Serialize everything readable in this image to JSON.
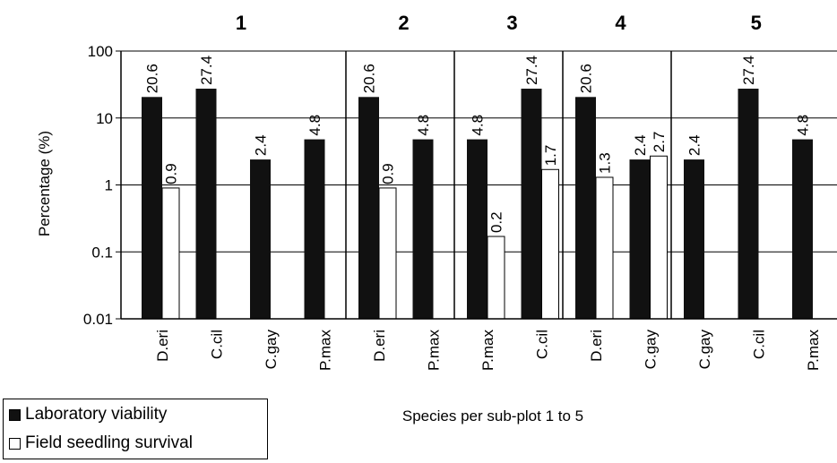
{
  "chart_data": {
    "type": "bar",
    "ylabel": "Percentage (%)",
    "xlabel": "Species per sub-plot 1 to 5",
    "yscale": "log",
    "ylim": [
      0.01,
      100
    ],
    "y_ticks": [
      "0.01",
      "0.1",
      "1",
      "10",
      "100"
    ],
    "grid": true,
    "legend_position": "bottom-left",
    "colors": {
      "Laboratory viability": "#111111",
      "Field seedling survival": "#ffffff"
    },
    "series": [
      {
        "name": "Laboratory viability"
      },
      {
        "name": "Field seedling survival"
      }
    ],
    "groups": [
      {
        "label": "1",
        "species": [
          {
            "name": "D.eri",
            "lab": 20.6,
            "lab_label": "20.6",
            "field": 0.9,
            "field_label": "0.9"
          },
          {
            "name": "C.cil",
            "lab": 27.4,
            "lab_label": "27.4",
            "field": null,
            "field_label": null
          },
          {
            "name": "C.gay",
            "lab": 2.4,
            "lab_label": "2.4",
            "field": null,
            "field_label": null
          },
          {
            "name": "P.max",
            "lab": 4.8,
            "lab_label": "4.8",
            "field": null,
            "field_label": null
          }
        ]
      },
      {
        "label": "2",
        "species": [
          {
            "name": "D.eri",
            "lab": 20.6,
            "lab_label": "20.6",
            "field": 0.9,
            "field_label": "0.9"
          },
          {
            "name": "P.max",
            "lab": 4.8,
            "lab_label": "4.8",
            "field": null,
            "field_label": null
          }
        ]
      },
      {
        "label": "3",
        "species": [
          {
            "name": "P.max",
            "lab": 4.8,
            "lab_label": "4.8",
            "field": 0.17,
            "field_label": "0.2"
          },
          {
            "name": "C.cil",
            "lab": 27.4,
            "lab_label": "27.4",
            "field": 1.7,
            "field_label": "1.7"
          }
        ]
      },
      {
        "label": "4",
        "species": [
          {
            "name": "D.eri",
            "lab": 20.6,
            "lab_label": "20.6",
            "field": 1.3,
            "field_label": "1.3"
          },
          {
            "name": "C.gay",
            "lab": 2.4,
            "lab_label": "2.4",
            "field": 2.7,
            "field_label": "2.7"
          }
        ]
      },
      {
        "label": "5",
        "species": [
          {
            "name": "C.gay",
            "lab": 2.4,
            "lab_label": "2.4",
            "field": null,
            "field_label": null
          },
          {
            "name": "C.cil",
            "lab": 27.4,
            "lab_label": "27.4",
            "field": null,
            "field_label": null
          },
          {
            "name": "P.max",
            "lab": 4.8,
            "lab_label": "4.8",
            "field": null,
            "field_label": null
          }
        ]
      }
    ]
  }
}
